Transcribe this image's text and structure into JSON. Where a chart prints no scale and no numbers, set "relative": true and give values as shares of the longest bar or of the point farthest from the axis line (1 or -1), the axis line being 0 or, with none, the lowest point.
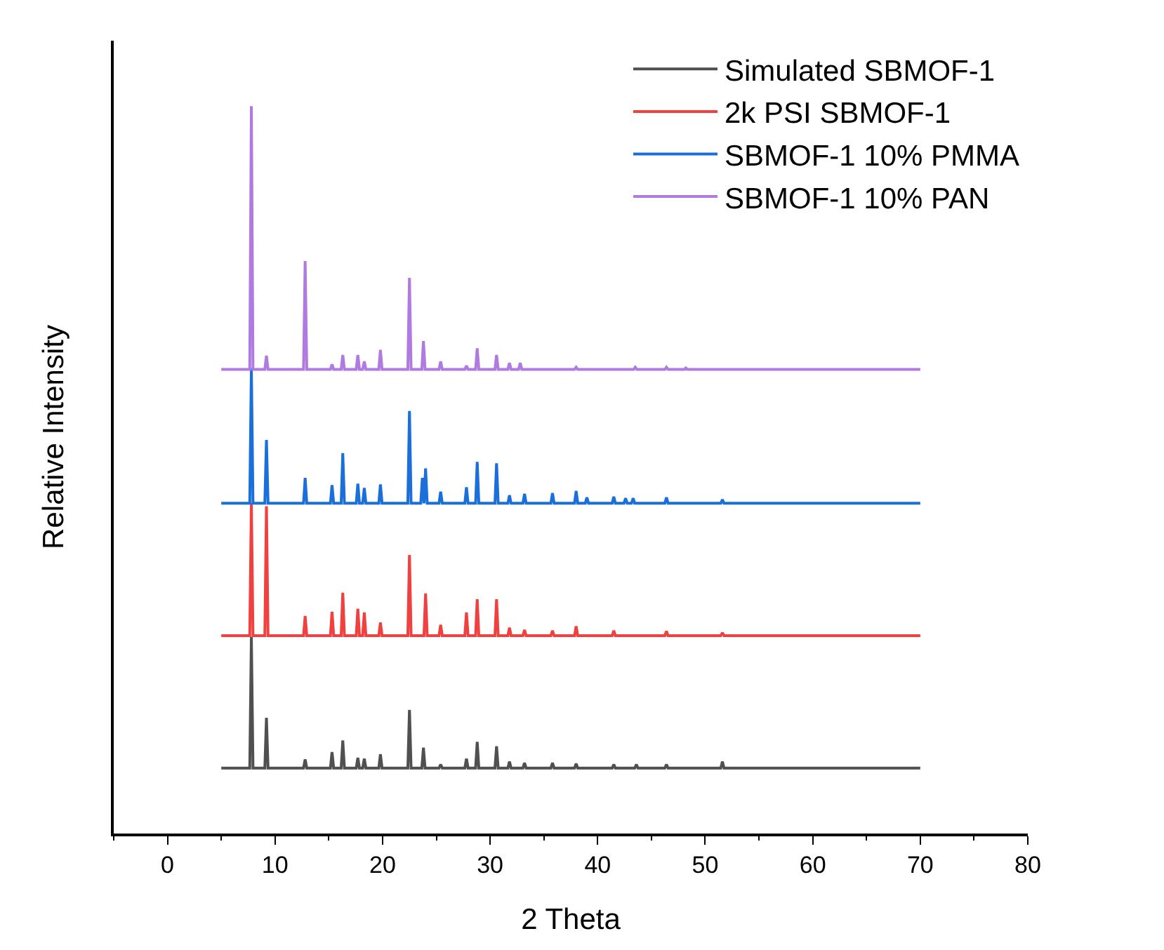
{
  "chart_data": {
    "type": "line",
    "relative": true,
    "xlabel": "2 Theta",
    "ylabel": "Relative Intensity",
    "xlim": [
      -5,
      80
    ],
    "xticks": [
      0,
      10,
      20,
      30,
      40,
      50,
      60,
      70,
      80
    ],
    "legend": "top right",
    "line_style": "solid",
    "series": [
      {
        "name": "Simulated SBMOF-1",
        "color": "#505050",
        "x": [
          5,
          7.65,
          7.8,
          7.95,
          9.05,
          9.2,
          9.35,
          12.65,
          12.8,
          12.95,
          15.15,
          15.3,
          15.45,
          16.15,
          16.3,
          16.45,
          17.55,
          17.7,
          17.85,
          18.15,
          18.3,
          18.45,
          19.65,
          19.8,
          19.95,
          22.35,
          22.5,
          22.65,
          23.65,
          23.8,
          23.95,
          25.25,
          25.4,
          25.55,
          27.65,
          27.8,
          27.95,
          28.65,
          28.8,
          28.95,
          30.45,
          30.6,
          30.75,
          31.65,
          31.8,
          31.95,
          33.05,
          33.2,
          33.35,
          35.65,
          35.8,
          35.95,
          37.85,
          38.0,
          38.15,
          41.35,
          41.5,
          41.65,
          43.45,
          43.6,
          43.75,
          46.25,
          46.4,
          46.55,
          51.45,
          51.6,
          51.75,
          70
        ],
        "values": [
          0.09,
          0.09,
          0.27,
          0.09,
          0.09,
          0.159,
          0.09,
          0.09,
          0.102,
          0.09,
          0.09,
          0.112,
          0.09,
          0.09,
          0.128,
          0.09,
          0.09,
          0.104,
          0.09,
          0.09,
          0.103,
          0.09,
          0.09,
          0.109,
          0.09,
          0.09,
          0.17,
          0.09,
          0.09,
          0.118,
          0.09,
          0.09,
          0.095,
          0.09,
          0.09,
          0.103,
          0.09,
          0.09,
          0.126,
          0.09,
          0.09,
          0.12,
          0.09,
          0.09,
          0.099,
          0.09,
          0.09,
          0.097,
          0.09,
          0.09,
          0.097,
          0.09,
          0.09,
          0.096,
          0.09,
          0.09,
          0.095,
          0.09,
          0.09,
          0.095,
          0.09,
          0.09,
          0.095,
          0.09,
          0.09,
          0.099,
          0.09,
          0.09
        ]
      },
      {
        "name": "2k PSI SBMOF-1",
        "color": "#f04040",
        "x": [
          5,
          7.65,
          7.8,
          7.95,
          9.05,
          9.2,
          9.35,
          12.65,
          12.8,
          12.95,
          15.15,
          15.3,
          15.45,
          16.15,
          16.3,
          16.45,
          17.55,
          17.7,
          17.85,
          18.15,
          18.3,
          18.45,
          19.65,
          19.8,
          19.95,
          22.35,
          22.5,
          22.65,
          23.85,
          24.0,
          24.15,
          25.25,
          25.4,
          25.55,
          27.65,
          27.8,
          27.95,
          28.65,
          28.8,
          28.95,
          30.45,
          30.6,
          30.75,
          31.65,
          31.8,
          31.95,
          33.05,
          33.2,
          33.35,
          35.65,
          35.8,
          35.95,
          37.85,
          38.0,
          38.15,
          41.35,
          41.5,
          41.65,
          46.25,
          46.4,
          46.55,
          51.45,
          51.6,
          51.75,
          70
        ],
        "values": [
          0.272,
          0.272,
          0.455,
          0.272,
          0.272,
          0.45,
          0.272,
          0.272,
          0.299,
          0.272,
          0.272,
          0.305,
          0.272,
          0.272,
          0.331,
          0.272,
          0.272,
          0.309,
          0.272,
          0.272,
          0.304,
          0.272,
          0.272,
          0.29,
          0.272,
          0.272,
          0.383,
          0.272,
          0.272,
          0.33,
          0.272,
          0.272,
          0.287,
          0.272,
          0.272,
          0.304,
          0.272,
          0.272,
          0.322,
          0.272,
          0.272,
          0.322,
          0.272,
          0.272,
          0.283,
          0.272,
          0.272,
          0.28,
          0.272,
          0.272,
          0.279,
          0.272,
          0.272,
          0.285,
          0.272,
          0.272,
          0.279,
          0.272,
          0.272,
          0.278,
          0.272,
          0.272,
          0.276,
          0.272,
          0.272
        ]
      },
      {
        "name": "SBMOF-1 10% PMMA",
        "color": "#1a6fdb",
        "x": [
          5,
          7.65,
          7.8,
          7.95,
          9.05,
          9.2,
          9.35,
          12.65,
          12.8,
          12.95,
          15.15,
          15.3,
          15.45,
          16.15,
          16.3,
          16.45,
          17.55,
          17.7,
          17.85,
          18.15,
          18.3,
          18.45,
          19.65,
          19.8,
          19.95,
          22.35,
          22.5,
          22.65,
          23.55,
          23.7,
          23.85,
          24.0,
          24.15,
          25.25,
          25.4,
          25.55,
          27.65,
          27.8,
          27.95,
          28.65,
          28.8,
          28.95,
          30.45,
          30.6,
          30.75,
          31.65,
          31.8,
          31.95,
          33.05,
          33.2,
          33.35,
          35.65,
          35.8,
          35.95,
          37.85,
          38.0,
          38.15,
          38.85,
          39.0,
          39.15,
          41.35,
          41.5,
          41.65,
          42.45,
          42.6,
          42.75,
          43.15,
          43.3,
          43.45,
          46.25,
          46.4,
          46.55,
          51.45,
          51.6,
          51.75,
          70
        ],
        "values": [
          0.454,
          0.454,
          0.64,
          0.454,
          0.454,
          0.541,
          0.454,
          0.454,
          0.489,
          0.454,
          0.454,
          0.479,
          0.454,
          0.454,
          0.523,
          0.454,
          0.454,
          0.481,
          0.454,
          0.454,
          0.475,
          0.454,
          0.454,
          0.48,
          0.454,
          0.454,
          0.581,
          0.454,
          0.454,
          0.489,
          0.454,
          0.502,
          0.454,
          0.454,
          0.47,
          0.454,
          0.454,
          0.476,
          0.454,
          0.454,
          0.511,
          0.454,
          0.454,
          0.509,
          0.454,
          0.454,
          0.465,
          0.454,
          0.454,
          0.467,
          0.454,
          0.454,
          0.468,
          0.454,
          0.454,
          0.471,
          0.454,
          0.454,
          0.462,
          0.454,
          0.454,
          0.463,
          0.454,
          0.454,
          0.461,
          0.454,
          0.454,
          0.461,
          0.454,
          0.454,
          0.462,
          0.454,
          0.454,
          0.459,
          0.454,
          0.454
        ]
      },
      {
        "name": "SBMOF-1 10% PAN",
        "color": "#b07ae0",
        "x": [
          5,
          7.65,
          7.8,
          7.95,
          9.05,
          9.2,
          9.35,
          12.65,
          12.8,
          12.95,
          15.15,
          15.3,
          15.45,
          16.15,
          16.3,
          16.45,
          17.55,
          17.7,
          17.85,
          18.15,
          18.3,
          18.45,
          19.65,
          19.8,
          19.95,
          22.35,
          22.5,
          22.65,
          23.65,
          23.8,
          23.95,
          25.25,
          25.4,
          25.55,
          27.65,
          27.8,
          27.95,
          28.65,
          28.8,
          28.95,
          30.45,
          30.6,
          30.75,
          31.65,
          31.8,
          31.95,
          32.65,
          32.8,
          32.95,
          37.85,
          38.0,
          38.15,
          43.35,
          43.5,
          43.65,
          46.25,
          46.4,
          46.55,
          48.05,
          48.2,
          48.35,
          70
        ],
        "values": [
          0.638,
          0.638,
          1.0,
          0.638,
          0.638,
          0.657,
          0.638,
          0.638,
          0.787,
          0.638,
          0.638,
          0.645,
          0.638,
          0.638,
          0.658,
          0.638,
          0.638,
          0.658,
          0.638,
          0.638,
          0.649,
          0.638,
          0.638,
          0.665,
          0.638,
          0.638,
          0.764,
          0.638,
          0.638,
          0.677,
          0.638,
          0.638,
          0.649,
          0.638,
          0.638,
          0.643,
          0.638,
          0.638,
          0.667,
          0.638,
          0.638,
          0.658,
          0.638,
          0.638,
          0.647,
          0.638,
          0.638,
          0.647,
          0.638,
          0.638,
          0.641,
          0.638,
          0.638,
          0.641,
          0.638,
          0.638,
          0.641,
          0.638,
          0.638,
          0.64,
          0.638,
          0.638
        ]
      }
    ]
  }
}
